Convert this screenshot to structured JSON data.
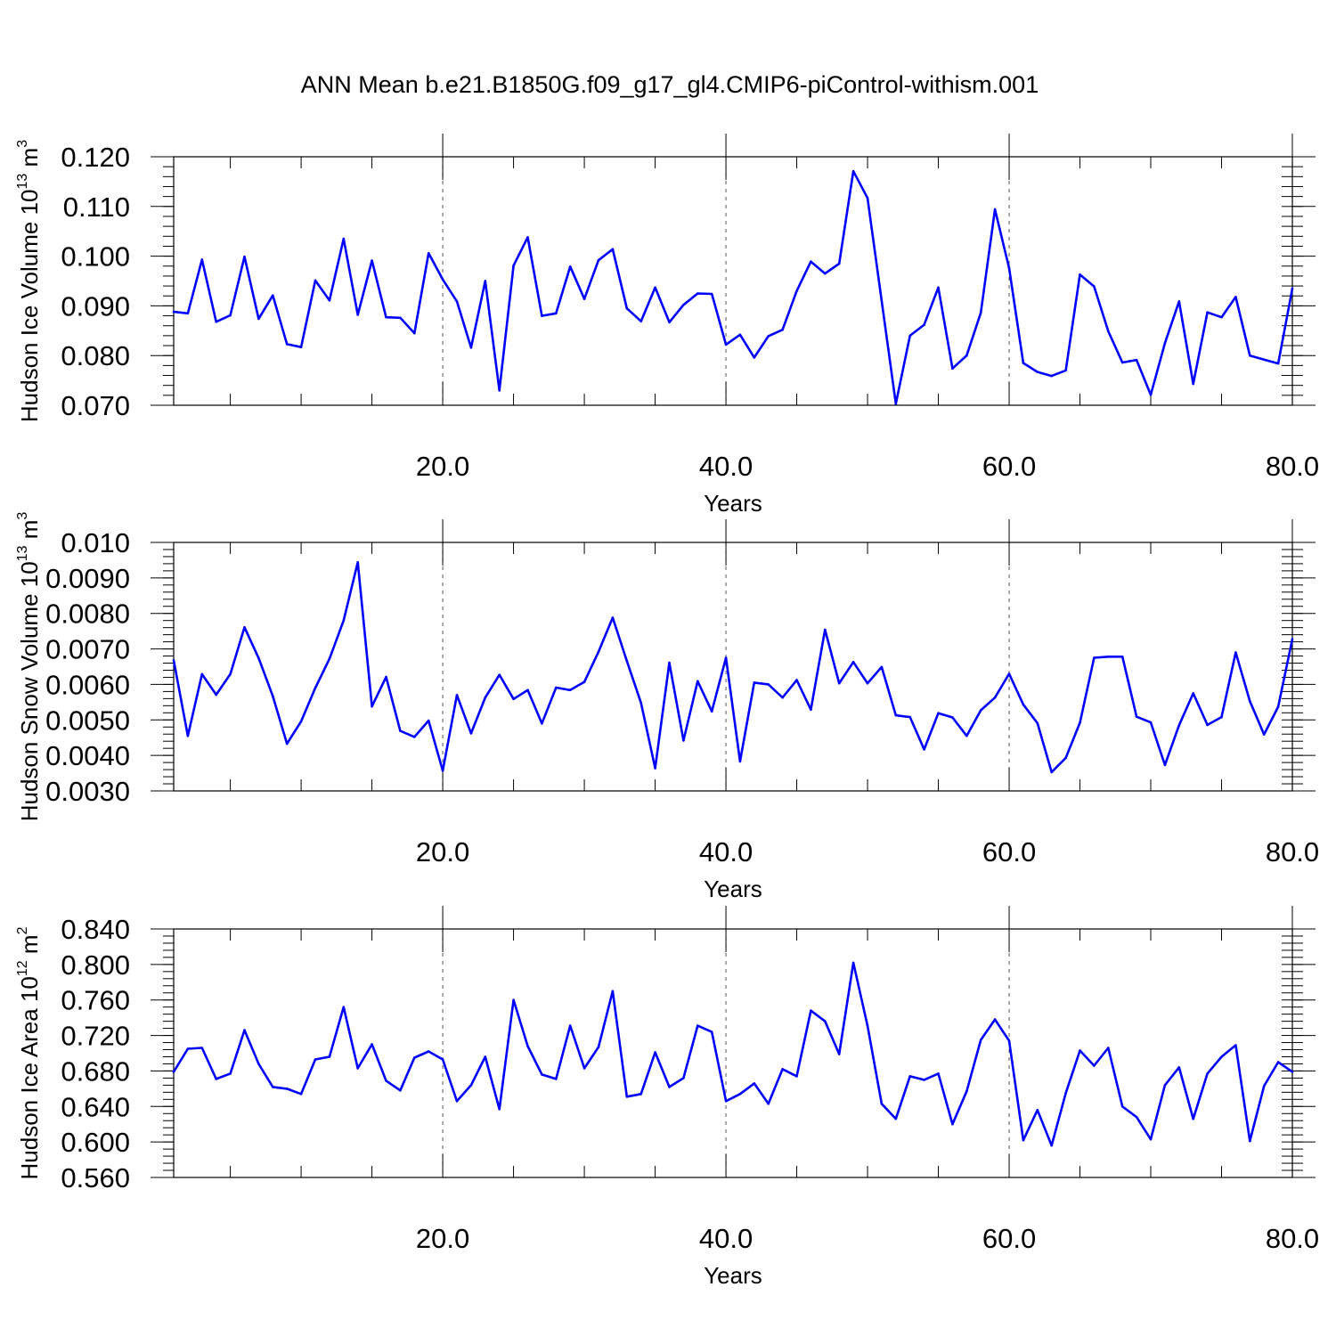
{
  "title": "ANN Mean b.e21.B1850G.f09_g17_gl4.CMIP6-piControl-withism.001",
  "colors": {
    "series": "#0000ff",
    "axes": "#000000",
    "grid": "#555555"
  },
  "chart_data": [
    {
      "type": "line",
      "ylabel": {
        "main": "Hudson Ice Volume 10",
        "sup1": "13",
        "mid": " m",
        "sup2": "3"
      },
      "xlabel": "Years",
      "xlim": [
        1,
        80
      ],
      "ylim": [
        0.07,
        0.12
      ],
      "y_ticks": [
        "0.070",
        "0.080",
        "0.090",
        "0.100",
        "0.110",
        "0.120"
      ],
      "x_ticks": [
        "20.0",
        "40.0",
        "60.0",
        "80.0"
      ],
      "x_tick_values": [
        20,
        40,
        60,
        80
      ],
      "y_tick_values": [
        0.07,
        0.08,
        0.09,
        0.1,
        0.11,
        0.12
      ],
      "y_minor_step": 0.002,
      "grid": "vertical-dashed",
      "x": [
        1,
        2,
        3,
        4,
        5,
        6,
        7,
        8,
        9,
        10,
        11,
        12,
        13,
        14,
        15,
        16,
        17,
        18,
        19,
        20,
        21,
        22,
        23,
        24,
        25,
        26,
        27,
        28,
        29,
        30,
        31,
        32,
        33,
        34,
        35,
        36,
        37,
        38,
        39,
        40,
        41,
        42,
        43,
        44,
        45,
        46,
        47,
        48,
        49,
        50,
        51,
        52,
        53,
        54,
        55,
        56,
        57,
        58,
        59,
        60,
        61,
        62,
        63,
        64,
        65,
        66,
        67,
        68,
        69,
        70,
        71,
        72,
        73,
        74,
        75,
        76,
        77,
        78,
        79,
        80
      ],
      "values": [
        0.0888,
        0.0885,
        0.0993,
        0.0868,
        0.0881,
        0.0999,
        0.0874,
        0.0921,
        0.0823,
        0.0817,
        0.0951,
        0.0911,
        0.1035,
        0.0882,
        0.0991,
        0.0877,
        0.0876,
        0.0845,
        0.1006,
        0.0953,
        0.0909,
        0.0816,
        0.095,
        0.073,
        0.0981,
        0.1038,
        0.088,
        0.0885,
        0.0979,
        0.0914,
        0.0992,
        0.1014,
        0.0895,
        0.0869,
        0.0937,
        0.0867,
        0.0902,
        0.0925,
        0.0924,
        0.0822,
        0.0842,
        0.0796,
        0.0839,
        0.0852,
        0.093,
        0.0989,
        0.0965,
        0.0985,
        0.1171,
        0.1117,
        0.091,
        0.0703,
        0.084,
        0.0862,
        0.0937,
        0.0774,
        0.08,
        0.0886,
        0.1094,
        0.0976,
        0.0785,
        0.0767,
        0.0759,
        0.077,
        0.0963,
        0.0939,
        0.0849,
        0.0786,
        0.0791,
        0.0721,
        0.0825,
        0.0909,
        0.0743,
        0.0887,
        0.0877,
        0.0918,
        0.08,
        0.0792,
        0.0784,
        0.0935
      ]
    },
    {
      "type": "line",
      "ylabel": {
        "main": "Hudson Snow Volume 10",
        "sup1": "13",
        "mid": " m",
        "sup2": "3"
      },
      "xlabel": "Years",
      "xlim": [
        1,
        80
      ],
      "ylim": [
        0.003,
        0.01
      ],
      "y_ticks": [
        "0.0030",
        "0.0040",
        "0.0050",
        "0.0060",
        "0.0070",
        "0.0080",
        "0.0090",
        "0.010"
      ],
      "x_ticks": [
        "20.0",
        "40.0",
        "60.0",
        "80.0"
      ],
      "x_tick_values": [
        20,
        40,
        60,
        80
      ],
      "y_tick_values": [
        0.003,
        0.004,
        0.005,
        0.006,
        0.007,
        0.008,
        0.009,
        0.01
      ],
      "y_minor_step": 0.0002,
      "grid": "vertical-dashed",
      "x": [
        1,
        2,
        3,
        4,
        5,
        6,
        7,
        8,
        9,
        10,
        11,
        12,
        13,
        14,
        15,
        16,
        17,
        18,
        19,
        20,
        21,
        22,
        23,
        24,
        25,
        26,
        27,
        28,
        29,
        30,
        31,
        32,
        33,
        34,
        35,
        36,
        37,
        38,
        39,
        40,
        41,
        42,
        43,
        44,
        45,
        46,
        47,
        48,
        49,
        50,
        51,
        52,
        53,
        54,
        55,
        56,
        57,
        58,
        59,
        60,
        61,
        62,
        63,
        64,
        65,
        66,
        67,
        68,
        69,
        70,
        71,
        72,
        73,
        74,
        75,
        76,
        77,
        78,
        79,
        80
      ],
      "values": [
        0.00668,
        0.00455,
        0.00629,
        0.00571,
        0.00629,
        0.00761,
        0.00674,
        0.00567,
        0.00433,
        0.00496,
        0.0059,
        0.00672,
        0.0078,
        0.00944,
        0.00538,
        0.00621,
        0.00469,
        0.00452,
        0.00498,
        0.00357,
        0.0057,
        0.00462,
        0.00563,
        0.00627,
        0.00559,
        0.00584,
        0.0049,
        0.00591,
        0.00584,
        0.00607,
        0.00692,
        0.00788,
        0.00666,
        0.00548,
        0.00364,
        0.00661,
        0.00442,
        0.00609,
        0.00524,
        0.00675,
        0.00383,
        0.00605,
        0.006,
        0.00563,
        0.00612,
        0.00529,
        0.00754,
        0.00603,
        0.00663,
        0.00603,
        0.00649,
        0.00513,
        0.00508,
        0.00417,
        0.00519,
        0.00507,
        0.00455,
        0.00527,
        0.00563,
        0.0063,
        0.00543,
        0.00491,
        0.00353,
        0.00393,
        0.00492,
        0.00675,
        0.00678,
        0.00678,
        0.00509,
        0.00493,
        0.00373,
        0.00485,
        0.00575,
        0.00486,
        0.00508,
        0.0069,
        0.00553,
        0.00459,
        0.00537,
        0.00728
      ]
    },
    {
      "type": "line",
      "ylabel": {
        "main": "Hudson Ice Area 10",
        "sup1": "12",
        "mid": " m",
        "sup2": "2"
      },
      "xlabel": "Years",
      "xlim": [
        1,
        80
      ],
      "ylim": [
        0.56,
        0.84
      ],
      "y_ticks": [
        "0.560",
        "0.600",
        "0.640",
        "0.680",
        "0.720",
        "0.760",
        "0.800",
        "0.840"
      ],
      "x_ticks": [
        "20.0",
        "40.0",
        "60.0",
        "80.0"
      ],
      "x_tick_values": [
        20,
        40,
        60,
        80
      ],
      "y_tick_values": [
        0.56,
        0.6,
        0.64,
        0.68,
        0.72,
        0.76,
        0.8,
        0.84
      ],
      "y_minor_step": 0.008,
      "grid": "vertical-dashed",
      "x": [
        1,
        2,
        3,
        4,
        5,
        6,
        7,
        8,
        9,
        10,
        11,
        12,
        13,
        14,
        15,
        16,
        17,
        18,
        19,
        20,
        21,
        22,
        23,
        24,
        25,
        26,
        27,
        28,
        29,
        30,
        31,
        32,
        33,
        34,
        35,
        36,
        37,
        38,
        39,
        40,
        41,
        42,
        43,
        44,
        45,
        46,
        47,
        48,
        49,
        50,
        51,
        52,
        53,
        54,
        55,
        56,
        57,
        58,
        59,
        60,
        61,
        62,
        63,
        64,
        65,
        66,
        67,
        68,
        69,
        70,
        71,
        72,
        73,
        74,
        75,
        76,
        77,
        78,
        79,
        80
      ],
      "values": [
        0.679,
        0.705,
        0.706,
        0.671,
        0.677,
        0.726,
        0.688,
        0.662,
        0.66,
        0.654,
        0.693,
        0.696,
        0.752,
        0.683,
        0.71,
        0.669,
        0.658,
        0.695,
        0.702,
        0.693,
        0.646,
        0.664,
        0.696,
        0.637,
        0.76,
        0.708,
        0.676,
        0.671,
        0.731,
        0.683,
        0.707,
        0.77,
        0.651,
        0.654,
        0.701,
        0.662,
        0.672,
        0.731,
        0.724,
        0.646,
        0.654,
        0.666,
        0.643,
        0.682,
        0.674,
        0.748,
        0.736,
        0.699,
        0.802,
        0.731,
        0.643,
        0.626,
        0.674,
        0.67,
        0.677,
        0.62,
        0.657,
        0.715,
        0.738,
        0.714,
        0.602,
        0.636,
        0.596,
        0.655,
        0.703,
        0.686,
        0.706,
        0.64,
        0.628,
        0.603,
        0.664,
        0.684,
        0.626,
        0.677,
        0.696,
        0.709,
        0.601,
        0.663,
        0.69,
        0.679
      ]
    }
  ]
}
